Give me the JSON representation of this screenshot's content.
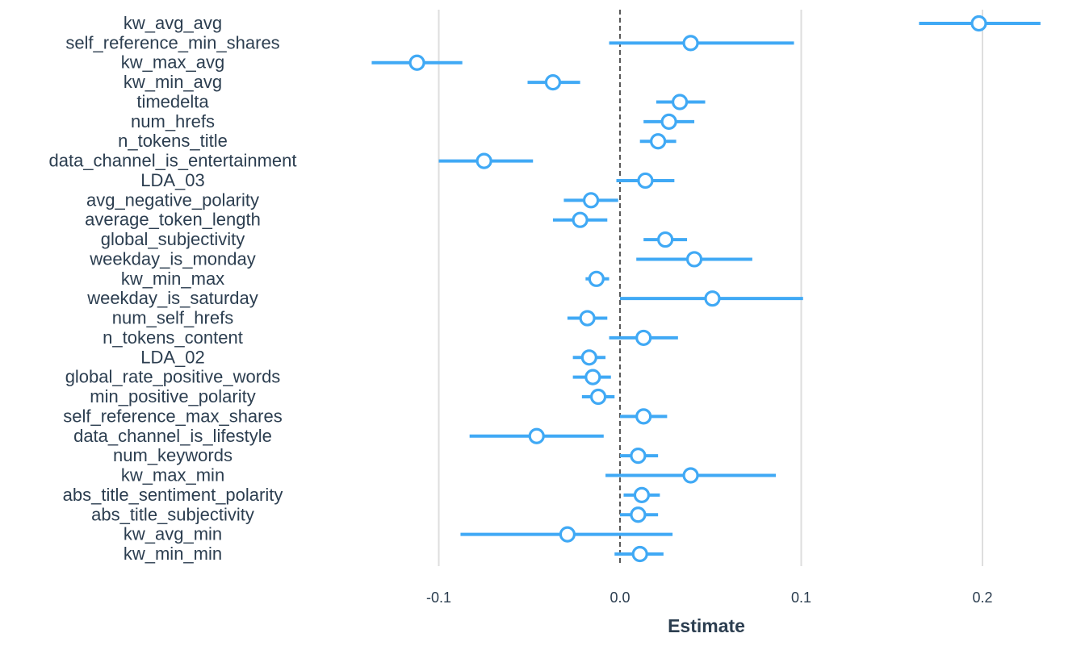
{
  "chart_data": {
    "type": "scatter",
    "subtype": "coefficient-plot-with-intervals",
    "title": "",
    "xlabel": "Estimate",
    "ylabel": "",
    "xlim": [
      -0.1,
      0.2
    ],
    "xticks": [
      -0.1,
      0.0,
      0.1,
      0.2
    ],
    "xtick_labels": [
      "-0.1",
      "0.0",
      "0.1",
      "0.2"
    ],
    "grid": "vertical major gridlines",
    "reference_line": {
      "x": 0,
      "style": "dashed"
    },
    "color": "#40a9f5",
    "terms": [
      {
        "term": "kw_avg_avg",
        "estimate": 0.198,
        "low": 0.165,
        "high": 0.232
      },
      {
        "term": "self_reference_min_shares",
        "estimate": 0.039,
        "low": -0.006,
        "high": 0.096
      },
      {
        "term": "kw_max_avg",
        "estimate": -0.112,
        "low": -0.137,
        "high": -0.087
      },
      {
        "term": "kw_min_avg",
        "estimate": -0.037,
        "low": -0.051,
        "high": -0.022
      },
      {
        "term": "timedelta",
        "estimate": 0.033,
        "low": 0.02,
        "high": 0.047
      },
      {
        "term": "num_hrefs",
        "estimate": 0.027,
        "low": 0.013,
        "high": 0.041
      },
      {
        "term": "n_tokens_title",
        "estimate": 0.021,
        "low": 0.011,
        "high": 0.031
      },
      {
        "term": "data_channel_is_entertainment",
        "estimate": -0.075,
        "low": -0.1,
        "high": -0.048
      },
      {
        "term": "LDA_03",
        "estimate": 0.014,
        "low": -0.002,
        "high": 0.03
      },
      {
        "term": "avg_negative_polarity",
        "estimate": -0.016,
        "low": -0.031,
        "high": -0.001
      },
      {
        "term": "average_token_length",
        "estimate": -0.022,
        "low": -0.037,
        "high": -0.007
      },
      {
        "term": "global_subjectivity",
        "estimate": 0.025,
        "low": 0.013,
        "high": 0.037
      },
      {
        "term": "weekday_is_monday",
        "estimate": 0.041,
        "low": 0.009,
        "high": 0.073
      },
      {
        "term": "kw_min_max",
        "estimate": -0.013,
        "low": -0.019,
        "high": -0.006
      },
      {
        "term": "weekday_is_saturday",
        "estimate": 0.051,
        "low": 0.0,
        "high": 0.101
      },
      {
        "term": "num_self_hrefs",
        "estimate": -0.018,
        "low": -0.029,
        "high": -0.007
      },
      {
        "term": "n_tokens_content",
        "estimate": 0.013,
        "low": -0.006,
        "high": 0.032
      },
      {
        "term": "LDA_02",
        "estimate": -0.017,
        "low": -0.026,
        "high": -0.008
      },
      {
        "term": "global_rate_positive_words",
        "estimate": -0.015,
        "low": -0.026,
        "high": -0.005
      },
      {
        "term": "min_positive_polarity",
        "estimate": -0.012,
        "low": -0.021,
        "high": -0.003
      },
      {
        "term": "self_reference_max_shares",
        "estimate": 0.013,
        "low": 0.0,
        "high": 0.026
      },
      {
        "term": "data_channel_is_lifestyle",
        "estimate": -0.046,
        "low": -0.083,
        "high": -0.009
      },
      {
        "term": "num_keywords",
        "estimate": 0.01,
        "low": 0.0,
        "high": 0.021
      },
      {
        "term": "kw_max_min",
        "estimate": 0.039,
        "low": -0.008,
        "high": 0.086
      },
      {
        "term": "abs_title_sentiment_polarity",
        "estimate": 0.012,
        "low": 0.002,
        "high": 0.022
      },
      {
        "term": "abs_title_subjectivity",
        "estimate": 0.01,
        "low": 0.0,
        "high": 0.021
      },
      {
        "term": "kw_avg_min",
        "estimate": -0.029,
        "low": -0.088,
        "high": 0.029
      },
      {
        "term": "kw_min_min",
        "estimate": 0.011,
        "low": -0.003,
        "high": 0.024
      }
    ]
  }
}
